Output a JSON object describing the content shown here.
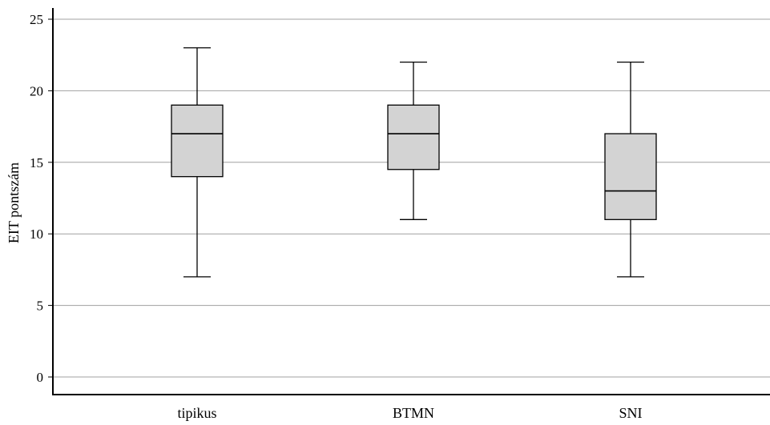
{
  "chart_data": {
    "type": "boxplot",
    "title": "",
    "xlabel": "",
    "ylabel": "EIT pontszám",
    "ylim": [
      0,
      25
    ],
    "yticks": [
      0,
      5,
      10,
      15,
      20,
      25
    ],
    "grid": "horizontal",
    "categories": [
      "tipikus",
      "BTMN",
      "SNI"
    ],
    "boxes": [
      {
        "category": "tipikus",
        "min": 7,
        "q1": 14,
        "median": 17,
        "q3": 19,
        "max": 23
      },
      {
        "category": "BTMN",
        "min": 11,
        "q1": 14.5,
        "median": 17,
        "q3": 19,
        "max": 22
      },
      {
        "category": "SNI",
        "min": 7,
        "q1": 11,
        "median": 13,
        "q3": 17,
        "max": 22
      }
    ],
    "colors": {
      "box_fill": "#d3d3d3",
      "stroke": "#000000",
      "grid": "#a0a0a0"
    }
  }
}
